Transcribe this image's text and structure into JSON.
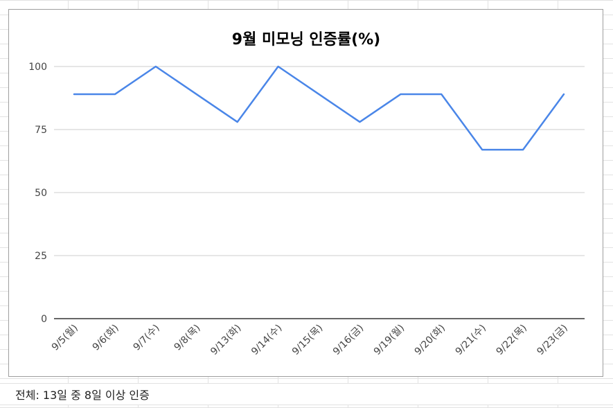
{
  "chart_data": {
    "type": "line",
    "title": "9월 미모닝 인증률(%)",
    "categories": [
      "9/5(월)",
      "9/6(화)",
      "9/7(수)",
      "9/8(목)",
      "9/13(화)",
      "9/14(수)",
      "9/15(목)",
      "9/16(금)",
      "9/19(월)",
      "9/20(화)",
      "9/21(수)",
      "9/22(목)",
      "9/23(금)"
    ],
    "series": [
      {
        "values": [
          89,
          89,
          100,
          89,
          78,
          100,
          89,
          78,
          89,
          89,
          67,
          67,
          89
        ],
        "color": "#4a86e8"
      }
    ],
    "yticks": [
      0,
      25,
      50,
      75,
      100
    ],
    "ylim": [
      0,
      100
    ],
    "grid": true,
    "legend": "none"
  },
  "footer": {
    "note": "전체: 13일 중 8일 이상 인증"
  }
}
